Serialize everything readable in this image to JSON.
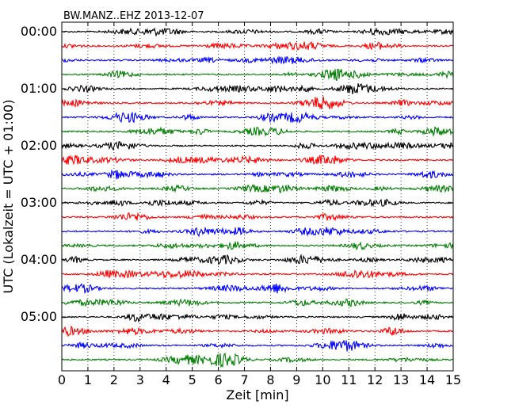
{
  "chart_data": {
    "type": "line",
    "title": "BW.MANZ..EHZ 2013-12-07",
    "xlabel": "Zeit  [min]",
    "ylabel": "UTC (Lokalzeit = UTC + 01:00)",
    "xlim": [
      0,
      15
    ],
    "x_ticks": [
      "0",
      "1",
      "2",
      "3",
      "4",
      "5",
      "6",
      "7",
      "8",
      "9",
      "10",
      "11",
      "12",
      "13",
      "14",
      "15"
    ],
    "y_ticks": [
      "00:00",
      "01:00",
      "02:00",
      "03:00",
      "04:00",
      "05:00"
    ],
    "trace_minutes": 15,
    "trace_count": 24,
    "trace_colors": [
      "#000000",
      "#ff0000",
      "#0000ff",
      "#008000"
    ],
    "grid": "vertical dotted",
    "legend": "none"
  }
}
